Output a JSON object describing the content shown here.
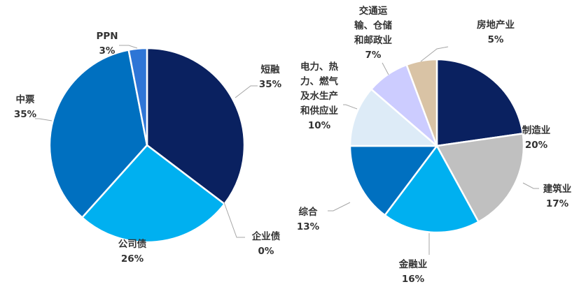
{
  "chart_data": [
    {
      "type": "pie",
      "title": "",
      "slices": [
        {
          "label": "短融",
          "value": 35,
          "value_label": "35%",
          "color": "#0A2160"
        },
        {
          "label": "企业债",
          "value": 0,
          "value_label": "0%",
          "color": "#1F4E9C"
        },
        {
          "label": "公司债",
          "value": 26,
          "value_label": "26%",
          "color": "#00B0F0"
        },
        {
          "label": "中票",
          "value": 35,
          "value_label": "35%",
          "color": "#0070C0"
        },
        {
          "label": "PPN",
          "value": 3,
          "value_label": "3%",
          "color": "#2E75D6"
        }
      ]
    },
    {
      "type": "pie",
      "title": "",
      "slices": [
        {
          "label": "制造业",
          "value": 20,
          "value_label": "20%",
          "color": "#0A2160"
        },
        {
          "label": "建筑业",
          "value": 17,
          "value_label": "17%",
          "color": "#C0C0C0"
        },
        {
          "label": "金融业",
          "value": 16,
          "value_label": "16%",
          "color": "#00B0F0"
        },
        {
          "label": "综合",
          "value": 13,
          "value_label": "13%",
          "color": "#0070C0"
        },
        {
          "label": "电力、热力、燃气及水生产和供应业",
          "value": 10,
          "value_label": "10%",
          "color": "#DDEBF7"
        },
        {
          "label": "交通运输、仓储和邮政业",
          "value": 7,
          "value_label": "7%",
          "color": "#CCCCFF"
        },
        {
          "label": "房地产业",
          "value": 5,
          "value_label": "5%",
          "color": "#D9C3A5"
        }
      ]
    }
  ],
  "labels": {
    "pie1": [
      {
        "lines": [
          "短融"
        ],
        "pct": "35%"
      },
      {
        "lines": [
          "企业债"
        ],
        "pct": "0%"
      },
      {
        "lines": [
          "公司债"
        ],
        "pct": "26%"
      },
      {
        "lines": [
          "中票"
        ],
        "pct": "35%"
      },
      {
        "lines": [
          "PPN"
        ],
        "pct": "3%"
      }
    ],
    "pie2": [
      {
        "lines": [
          "制造业"
        ],
        "pct": "20%"
      },
      {
        "lines": [
          "建筑业"
        ],
        "pct": "17%"
      },
      {
        "lines": [
          "金融业"
        ],
        "pct": "16%"
      },
      {
        "lines": [
          "综合"
        ],
        "pct": "13%"
      },
      {
        "lines": [
          "电力、热",
          "力、燃气",
          "及水生产",
          "和供应业"
        ],
        "pct": "10%"
      },
      {
        "lines": [
          "交通运",
          "输、仓储",
          "和邮政业"
        ],
        "pct": "7%"
      },
      {
        "lines": [
          "房地产业"
        ],
        "pct": "5%"
      }
    ]
  }
}
